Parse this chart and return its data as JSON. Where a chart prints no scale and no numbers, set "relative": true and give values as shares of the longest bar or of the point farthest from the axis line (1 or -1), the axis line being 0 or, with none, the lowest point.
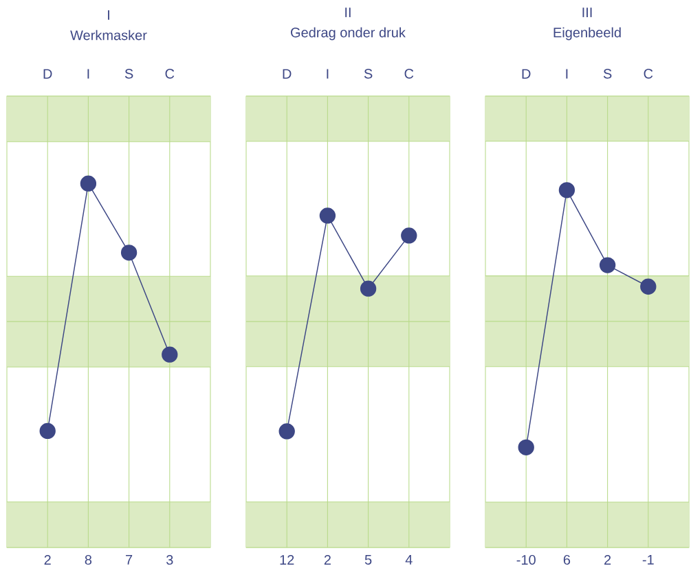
{
  "chart_data": [
    {
      "type": "line",
      "title": "I",
      "subtitle": "Werkmasker",
      "categories": [
        "D",
        "I",
        "S",
        "C"
      ],
      "relative": true,
      "series": [
        {
          "color": "#3d4785",
          "values": [
            0.32,
            1,
            0.81,
            0.53
          ]
        }
      ],
      "annotations": [
        "2",
        "8",
        "7",
        "3"
      ],
      "bands": [
        {
          "axis": "y",
          "from": 0,
          "to": 0.125,
          "color": "#dcebc3"
        },
        {
          "axis": "y",
          "from": 0.496,
          "to": 0.621,
          "color": "#dcebc3"
        },
        {
          "axis": "y",
          "from": 0.621,
          "to": 0.745,
          "color": "#dcebc3"
        },
        {
          "axis": "y",
          "from": 1.115,
          "to": 1.24,
          "color": "#dcebc3"
        }
      ],
      "marker": "circle",
      "line_style": "solid",
      "grid": "x"
    },
    {
      "type": "line",
      "title": "II",
      "subtitle": "Gedrag onder druk",
      "categories": [
        "D",
        "I",
        "S",
        "C"
      ],
      "relative": true,
      "series": [
        {
          "color": "#3d4785",
          "values": [
            0.35,
            1,
            0.78,
            0.94
          ]
        }
      ],
      "annotations": [
        "12",
        "2",
        "5",
        "4"
      ],
      "bands": [
        {
          "axis": "y",
          "from": 0,
          "to": 0.137,
          "color": "#dcebc3"
        },
        {
          "axis": "y",
          "from": 0.545,
          "to": 0.681,
          "color": "#dcebc3"
        },
        {
          "axis": "y",
          "from": 0.681,
          "to": 0.818,
          "color": "#dcebc3"
        },
        {
          "axis": "y",
          "from": 1.224,
          "to": 1.36,
          "color": "#dcebc3"
        }
      ],
      "marker": "circle",
      "line_style": "solid",
      "grid": "x"
    },
    {
      "type": "line",
      "title": "III",
      "subtitle": "Eigenbeeld",
      "categories": [
        "D",
        "I",
        "S",
        "C"
      ],
      "relative": true,
      "series": [
        {
          "color": "#3d4785",
          "values": [
            0.28,
            1,
            0.79,
            0.73
          ]
        }
      ],
      "annotations": [
        "-10",
        "6",
        "2",
        "-1"
      ],
      "bands": [
        {
          "axis": "y",
          "from": 0,
          "to": 0.127,
          "color": "#dcebc3"
        },
        {
          "axis": "y",
          "from": 0.506,
          "to": 0.633,
          "color": "#dcebc3"
        },
        {
          "axis": "y",
          "from": 0.633,
          "to": 0.76,
          "color": "#dcebc3"
        },
        {
          "axis": "y",
          "from": 1.137,
          "to": 1.263,
          "color": "#dcebc3"
        }
      ],
      "marker": "circle",
      "line_style": "solid",
      "grid": "x"
    }
  ]
}
